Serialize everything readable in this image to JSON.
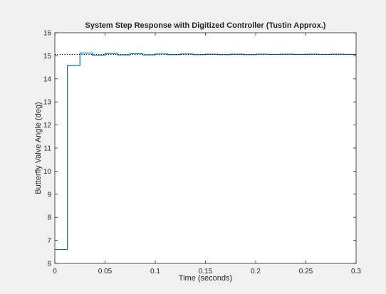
{
  "chart_data": {
    "type": "line",
    "title": "System Step Response with Digitized Controller (Tustin Approx.)",
    "xlabel": "Time (seconds)",
    "ylabel": "Butterfly Valve Angle (deg)",
    "xlim": [
      0,
      0.3
    ],
    "ylim": [
      6,
      16
    ],
    "xticks": [
      0,
      0.05,
      0.1,
      0.15,
      0.2,
      0.25,
      0.3
    ],
    "xtick_labels": [
      "0",
      "0.05",
      "0.1",
      "0.15",
      "0.2",
      "0.25",
      "0.3"
    ],
    "yticks": [
      6,
      7,
      8,
      9,
      10,
      11,
      12,
      13,
      14,
      15,
      16
    ],
    "ytick_labels": [
      "6",
      "7",
      "8",
      "9",
      "10",
      "11",
      "12",
      "13",
      "14",
      "15",
      "16"
    ],
    "grid": false,
    "legend": false,
    "series": [
      {
        "style": "stairs",
        "color": "#0072bd",
        "x": [
          0,
          0.0125,
          0.025,
          0.0375,
          0.05,
          0.0625,
          0.075,
          0.0875,
          0.1,
          0.1125,
          0.125,
          0.1375,
          0.15,
          0.1625,
          0.175,
          0.1875,
          0.2,
          0.2125,
          0.225,
          0.2375,
          0.25,
          0.2625,
          0.275,
          0.2875,
          0.3
        ],
        "y": [
          6.6,
          14.58,
          15.12,
          15.03,
          15.1,
          15.04,
          15.09,
          15.04,
          15.08,
          15.05,
          15.08,
          15.05,
          15.07,
          15.05,
          15.07,
          15.05,
          15.07,
          15.06,
          15.07,
          15.06,
          15.07,
          15.06,
          15.07,
          15.06,
          15.06
        ]
      },
      {
        "style": "dotted",
        "color": "#000000",
        "x": [
          0,
          0.3
        ],
        "y": [
          15.06,
          15.06
        ]
      }
    ]
  }
}
